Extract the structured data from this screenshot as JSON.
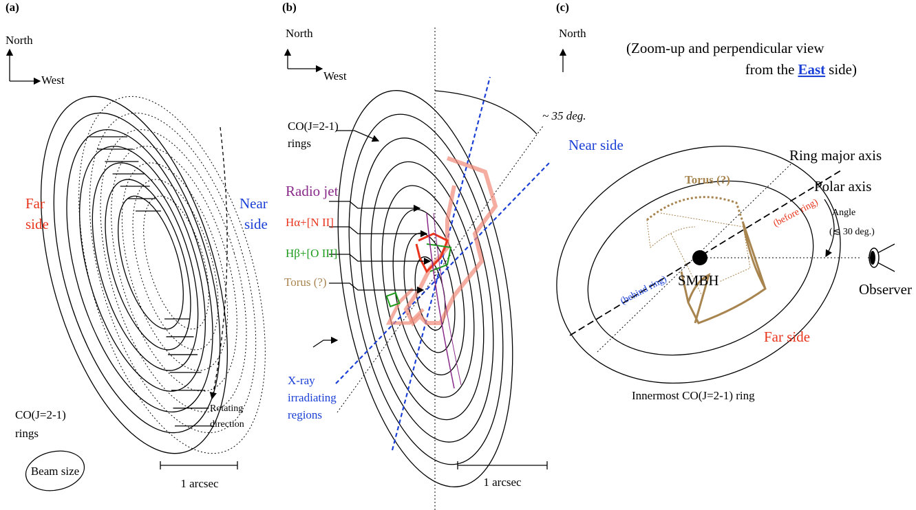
{
  "panel_a": {
    "label": "(a)",
    "north": "North",
    "west": "West",
    "far_side": [
      "Far",
      "side"
    ],
    "near_side": [
      "Near",
      "side"
    ],
    "rotating": [
      "Rotating",
      "direction"
    ],
    "rings_label": [
      "CO(J=2-1)",
      "rings"
    ],
    "beam": "Beam size",
    "scale": "1 arcsec"
  },
  "panel_b": {
    "label": "(b)",
    "north": "North",
    "west": "West",
    "angle": "~ 35 deg.",
    "rings_label": [
      "CO(J=2-1)",
      "rings"
    ],
    "radio_jet": "Radio jet",
    "halpha": "Hα+[N II]",
    "hbeta": "Hβ+[O III]",
    "torus": "Torus (?)",
    "xray": [
      "X-ray",
      "irradiating",
      "regions"
    ],
    "scale": "1 arcsec"
  },
  "panel_c": {
    "label": "(c)",
    "north": "North",
    "note_line1": "(Zoom-up and perpendicular view",
    "note_line2": [
      "from the",
      "East",
      "side)"
    ],
    "near_side": "Near side",
    "ring_major_axis": "Ring major axis",
    "torus": "Torus (?)",
    "polar_axis": "Polar axis",
    "angle": "Angle",
    "angle_value": "(≲ 30 deg.)",
    "before_ring": "(before ring)",
    "behind_ring": "(behind ring)",
    "smbh": "SMBH",
    "observer": "Observer",
    "far_side": "Far side",
    "caption": "Innermost CO(J=2-1) ring"
  }
}
